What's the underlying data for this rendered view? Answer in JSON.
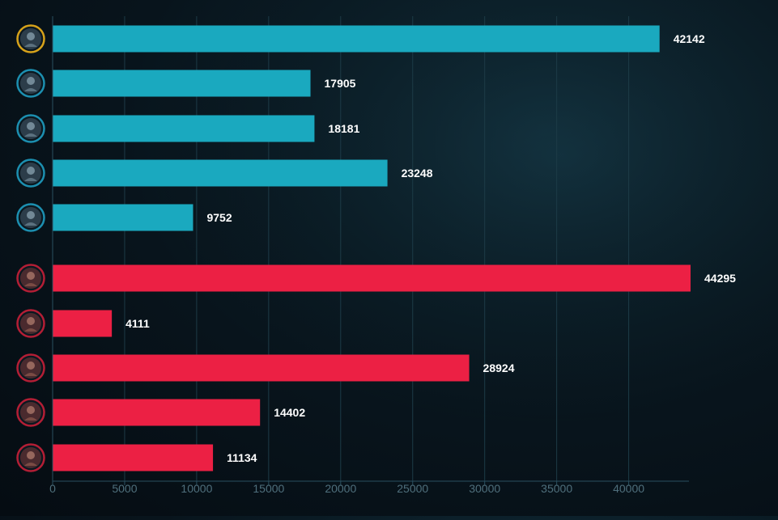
{
  "chart_data": {
    "type": "bar",
    "orientation": "horizontal",
    "xlim": [
      0,
      44295
    ],
    "xticks": [
      0,
      5000,
      10000,
      15000,
      20000,
      25000,
      30000,
      35000,
      40000
    ],
    "grid": true,
    "groups": [
      {
        "team": "blue",
        "color": "#1aa9bf",
        "values": [
          42142,
          17905,
          18181,
          23248,
          9752
        ]
      },
      {
        "team": "red",
        "color": "#ec2044",
        "values": [
          44295,
          4111,
          28924,
          14402,
          11134
        ]
      }
    ],
    "avatar_ring_colors": {
      "highlight": "#d6a21a",
      "blue": "#1c8fb0",
      "red": "#b31e35"
    }
  }
}
